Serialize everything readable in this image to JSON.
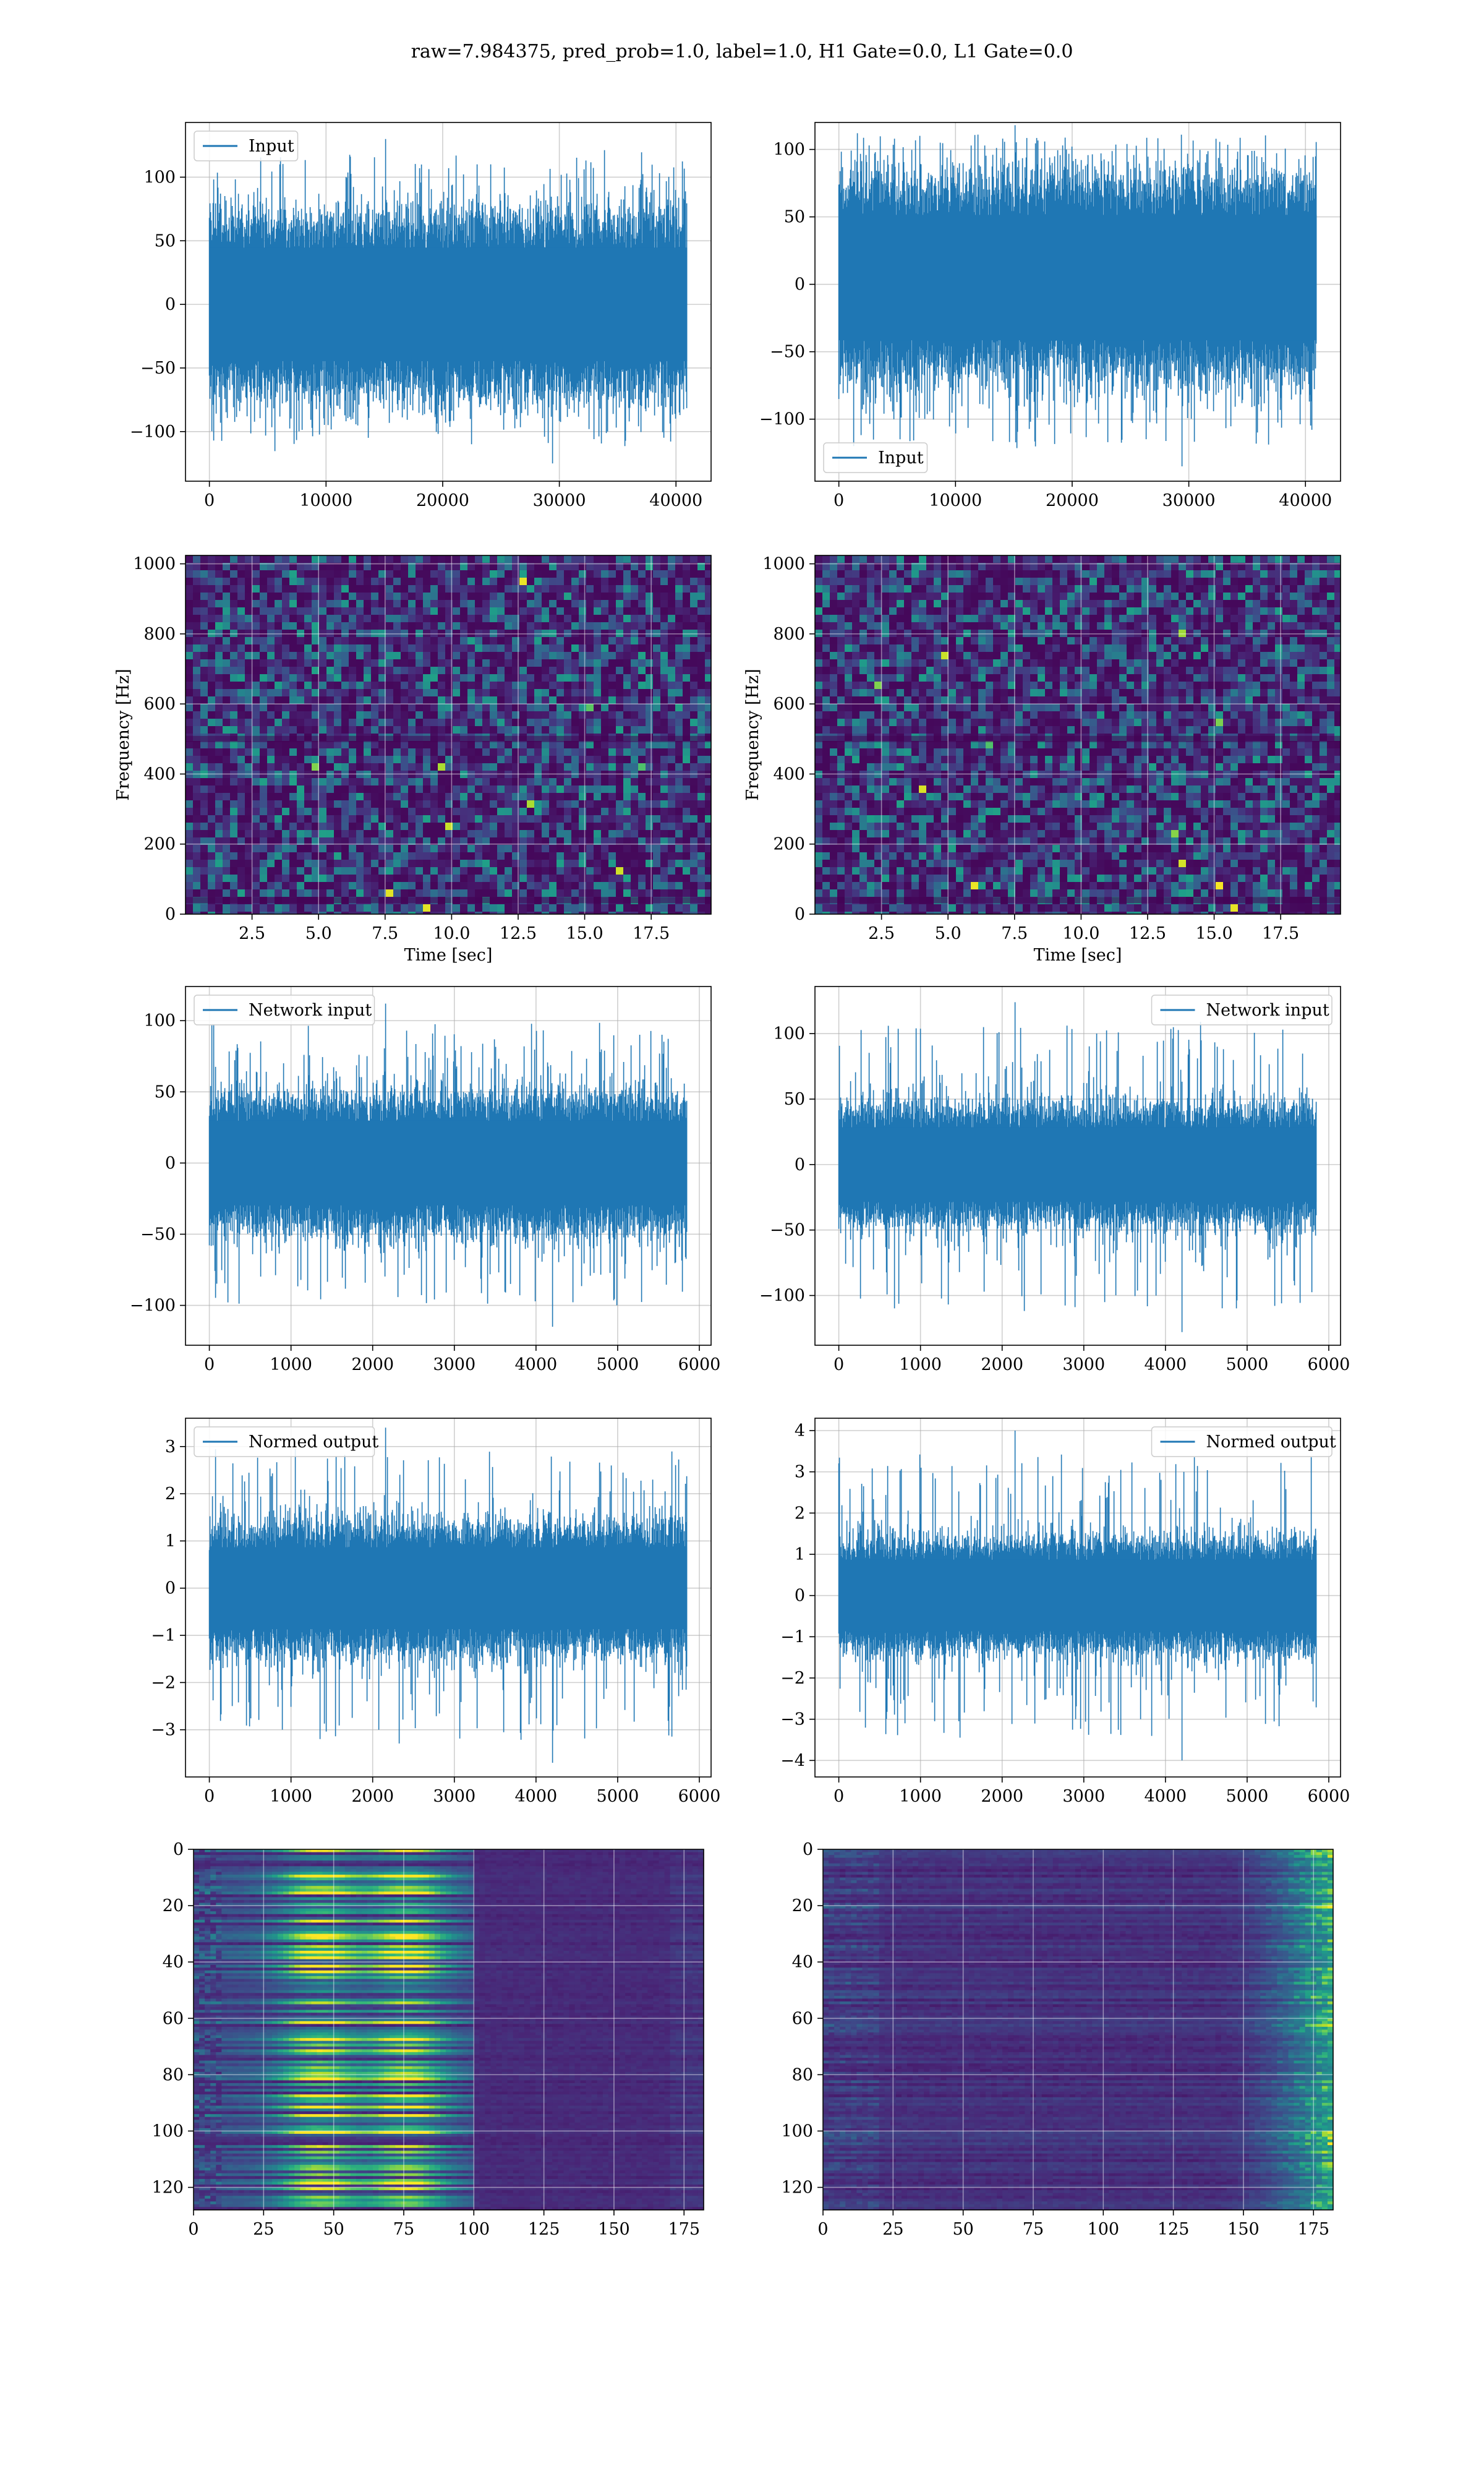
{
  "suptitle": "raw=7.984375, pred_prob=1.0, label=1.0, H1 Gate=0.0, L1 Gate=0.0",
  "colors": {
    "series": "#1f77b4",
    "grid": "#b0b0b0",
    "viridis": [
      "#440154",
      "#482878",
      "#3e4a89",
      "#31688e",
      "#26828e",
      "#1f9e89",
      "#35b779",
      "#6ece58",
      "#b5de2b",
      "#fde725"
    ]
  },
  "chart_data": [
    {
      "id": "h1-input",
      "type": "line",
      "legend": "Input",
      "legend_loc": "upper-left",
      "xlim": [
        -2048,
        43008
      ],
      "ylim": [
        -139,
        143
      ],
      "xticks": [
        0,
        10000,
        20000,
        30000,
        40000
      ],
      "yticks": [
        -100,
        -50,
        0,
        50,
        100
      ],
      "series": [
        {
          "name": "Input",
          "n_points": 40960,
          "band": [
            -72,
            72
          ],
          "min": -125,
          "max": 130
        }
      ]
    },
    {
      "id": "l1-input",
      "type": "line",
      "legend": "Input",
      "legend_loc": "lower-left",
      "xlim": [
        -2048,
        43008
      ],
      "ylim": [
        -146,
        120
      ],
      "xticks": [
        0,
        10000,
        20000,
        30000,
        40000
      ],
      "yticks": [
        -100,
        -50,
        0,
        50,
        100
      ],
      "series": [
        {
          "name": "Input",
          "n_points": 40960,
          "band": [
            -70,
            80
          ],
          "min": -135,
          "max": 118
        }
      ]
    },
    {
      "id": "h1-spectrogram",
      "type": "heatmap",
      "xlabel": "Time [sec]",
      "ylabel": "Frequency [Hz]",
      "xlim": [
        0,
        19.75
      ],
      "ylim": [
        0,
        1024
      ],
      "xticks": [
        2.5,
        5.0,
        7.5,
        10.0,
        12.5,
        15.0,
        17.5
      ],
      "yticks": [
        0,
        200,
        400,
        600,
        800,
        1000
      ],
      "xticklabels": [
        "2.5",
        "5.0",
        "7.5",
        "10.0",
        "12.5",
        "15.0",
        "17.5"
      ],
      "colormap": "viridis"
    },
    {
      "id": "l1-spectrogram",
      "type": "heatmap",
      "xlabel": "Time [sec]",
      "ylabel": "Frequency [Hz]",
      "xlim": [
        0,
        19.75
      ],
      "ylim": [
        0,
        1024
      ],
      "xticks": [
        2.5,
        5.0,
        7.5,
        10.0,
        12.5,
        15.0,
        17.5
      ],
      "yticks": [
        0,
        200,
        400,
        600,
        800,
        1000
      ],
      "xticklabels": [
        "2.5",
        "5.0",
        "7.5",
        "10.0",
        "12.5",
        "15.0",
        "17.5"
      ],
      "colormap": "viridis"
    },
    {
      "id": "h1-network-input",
      "type": "line",
      "legend": "Network input",
      "legend_loc": "upper-left",
      "xlim": [
        -292,
        6144
      ],
      "ylim": [
        -128,
        124
      ],
      "xticks": [
        0,
        1000,
        2000,
        3000,
        4000,
        5000,
        6000
      ],
      "yticks": [
        -100,
        -50,
        0,
        50,
        100
      ],
      "series": [
        {
          "name": "Network input",
          "n_points": 5850,
          "band": [
            -48,
            48
          ],
          "min": -115,
          "max": 112
        }
      ]
    },
    {
      "id": "l1-network-input",
      "type": "line",
      "legend": "Network input",
      "legend_loc": "upper-right",
      "xlim": [
        -292,
        6144
      ],
      "ylim": [
        -138,
        136
      ],
      "xticks": [
        0,
        1000,
        2000,
        3000,
        4000,
        5000,
        6000
      ],
      "yticks": [
        -100,
        -50,
        0,
        50,
        100
      ],
      "series": [
        {
          "name": "Network input",
          "n_points": 5850,
          "band": [
            -46,
            46
          ],
          "min": -128,
          "max": 124
        }
      ]
    },
    {
      "id": "h1-normed-output",
      "type": "line",
      "legend": "Normed output",
      "legend_loc": "upper-left",
      "xlim": [
        -292,
        6144
      ],
      "ylim": [
        -4.0,
        3.6
      ],
      "xticks": [
        0,
        1000,
        2000,
        3000,
        4000,
        5000,
        6000
      ],
      "yticks": [
        -3,
        -2,
        -1,
        0,
        1,
        2,
        3
      ],
      "series": [
        {
          "name": "Normed output",
          "n_points": 5850,
          "band": [
            -1.4,
            1.4
          ],
          "min": -3.7,
          "max": 3.4
        }
      ]
    },
    {
      "id": "l1-normed-output",
      "type": "line",
      "legend": "Normed output",
      "legend_loc": "upper-right",
      "xlim": [
        -292,
        6144
      ],
      "ylim": [
        -4.4,
        4.3
      ],
      "xticks": [
        0,
        1000,
        2000,
        3000,
        4000,
        5000,
        6000
      ],
      "yticks": [
        -4,
        -3,
        -2,
        -1,
        0,
        1,
        2,
        3,
        4
      ],
      "series": [
        {
          "name": "Normed output",
          "n_points": 5850,
          "band": [
            -1.4,
            1.4
          ],
          "min": -4.0,
          "max": 4.0
        }
      ]
    },
    {
      "id": "h1-feature-map",
      "type": "heatmap",
      "xlim": [
        0,
        182
      ],
      "ylim": [
        128,
        0
      ],
      "xticks": [
        0,
        25,
        50,
        75,
        100,
        125,
        150,
        175
      ],
      "yticks": [
        0,
        20,
        40,
        60,
        80,
        100,
        120
      ],
      "colormap": "viridis"
    },
    {
      "id": "l1-feature-map",
      "type": "heatmap",
      "xlim": [
        0,
        182
      ],
      "ylim": [
        128,
        0
      ],
      "xticks": [
        0,
        25,
        50,
        75,
        100,
        125,
        150,
        175
      ],
      "yticks": [
        0,
        20,
        40,
        60,
        80,
        100,
        120
      ],
      "colormap": "viridis"
    }
  ]
}
